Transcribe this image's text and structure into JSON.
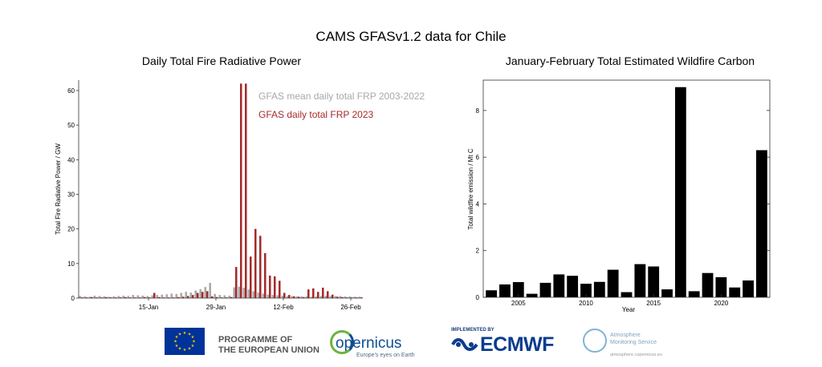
{
  "page_title": "CAMS GFASv1.2 data for Chile",
  "colors": {
    "mean": "#a8a8a8",
    "frp2023": "#a52a2a",
    "carbon": "#000000"
  },
  "chart_data": [
    {
      "type": "bar",
      "title": "Daily Total Fire Radiative Power",
      "ylabel": "Total Fire Radiative Power / GW",
      "xlabel": "",
      "ylim": [
        0,
        63
      ],
      "yticks": [
        0,
        10,
        20,
        30,
        40,
        50,
        60
      ],
      "x_tick_labels": [
        {
          "day": 15,
          "label": "15-Jan"
        },
        {
          "day": 29,
          "label": "29-Jan"
        },
        {
          "day": 43,
          "label": "12-Feb"
        },
        {
          "day": 57,
          "label": "26-Feb"
        }
      ],
      "legend_position": "top-right",
      "grid": false,
      "series": [
        {
          "name": "GFAS mean daily total FRP 2003-2022",
          "values": [
            0.6,
            0.5,
            0.4,
            0.7,
            0.6,
            0.5,
            0.4,
            0.5,
            0.6,
            0.7,
            0.6,
            0.9,
            0.8,
            0.7,
            0.6,
            0.8,
            0.9,
            1.0,
            1.1,
            1.3,
            1.2,
            1.5,
            1.8,
            1.6,
            2.2,
            2.6,
            3.2,
            4.4,
            1.2,
            0.9,
            0.8,
            0.7,
            3.1,
            3.3,
            3.0,
            2.5,
            2.0,
            1.6,
            1.3,
            1.0,
            0.9,
            0.8,
            0.7,
            0.6,
            0.6,
            0.5,
            0.5,
            0.5,
            0.4,
            0.5,
            0.6,
            0.7,
            0.6,
            0.6,
            0.6,
            0.5,
            0.5,
            0.4,
            0.4
          ]
        },
        {
          "name": "GFAS daily total FRP 2023",
          "values": [
            0.2,
            0.2,
            0.3,
            0.2,
            0.2,
            0.3,
            0.2,
            0.2,
            0.2,
            0.3,
            0.2,
            0.2,
            0.2,
            0.3,
            0.2,
            1.5,
            0.3,
            0.2,
            0.2,
            0.2,
            0.3,
            0.4,
            0.6,
            0.9,
            1.5,
            1.8,
            2.0,
            0.5,
            0.3,
            0.2,
            0.2,
            0.3,
            9.0,
            62,
            62,
            12,
            20,
            18,
            13,
            6.5,
            6.3,
            5.0,
            1.5,
            0.9,
            0.5,
            0.4,
            0.3,
            2.5,
            2.8,
            1.8,
            3.0,
            2.0,
            1.0,
            0.4,
            0.3,
            0.2,
            0.2,
            0.2,
            0.2
          ]
        }
      ]
    },
    {
      "type": "bar",
      "title": "January-February Total Estimated Wildfire Carbon",
      "ylabel": "Total wildfire emission / Mt C",
      "xlabel": "Year",
      "ylim": [
        0,
        9.3
      ],
      "yticks": [
        0,
        2,
        4,
        6,
        8
      ],
      "x_tick_labels": [
        2005,
        2010,
        2015,
        2020
      ],
      "xlim": [
        2002.4,
        2023.6
      ],
      "categories": [
        2003,
        2004,
        2005,
        2006,
        2007,
        2008,
        2009,
        2010,
        2011,
        2012,
        2013,
        2014,
        2015,
        2016,
        2017,
        2018,
        2019,
        2020,
        2021,
        2022,
        2023
      ],
      "values": [
        0.3,
        0.55,
        0.65,
        0.15,
        0.62,
        0.98,
        0.92,
        0.58,
        0.66,
        1.18,
        0.22,
        1.42,
        1.32,
        0.34,
        9.0,
        0.26,
        1.04,
        0.86,
        0.42,
        0.72,
        6.3
      ]
    }
  ],
  "logos": {
    "eu_line1": "PROGRAMME OF",
    "eu_line2": "THE EUROPEAN UNION",
    "copernicus": "opernicus",
    "copernicus_sub": "Europe's eyes on Earth",
    "ecmwf_impl": "IMPLEMENTED BY",
    "ecmwf": "ECMWF",
    "atmo_line1": "Atmosphere",
    "atmo_line2": "Monitoring Service",
    "atmo_url": "atmosphere.copernicus.eu"
  }
}
